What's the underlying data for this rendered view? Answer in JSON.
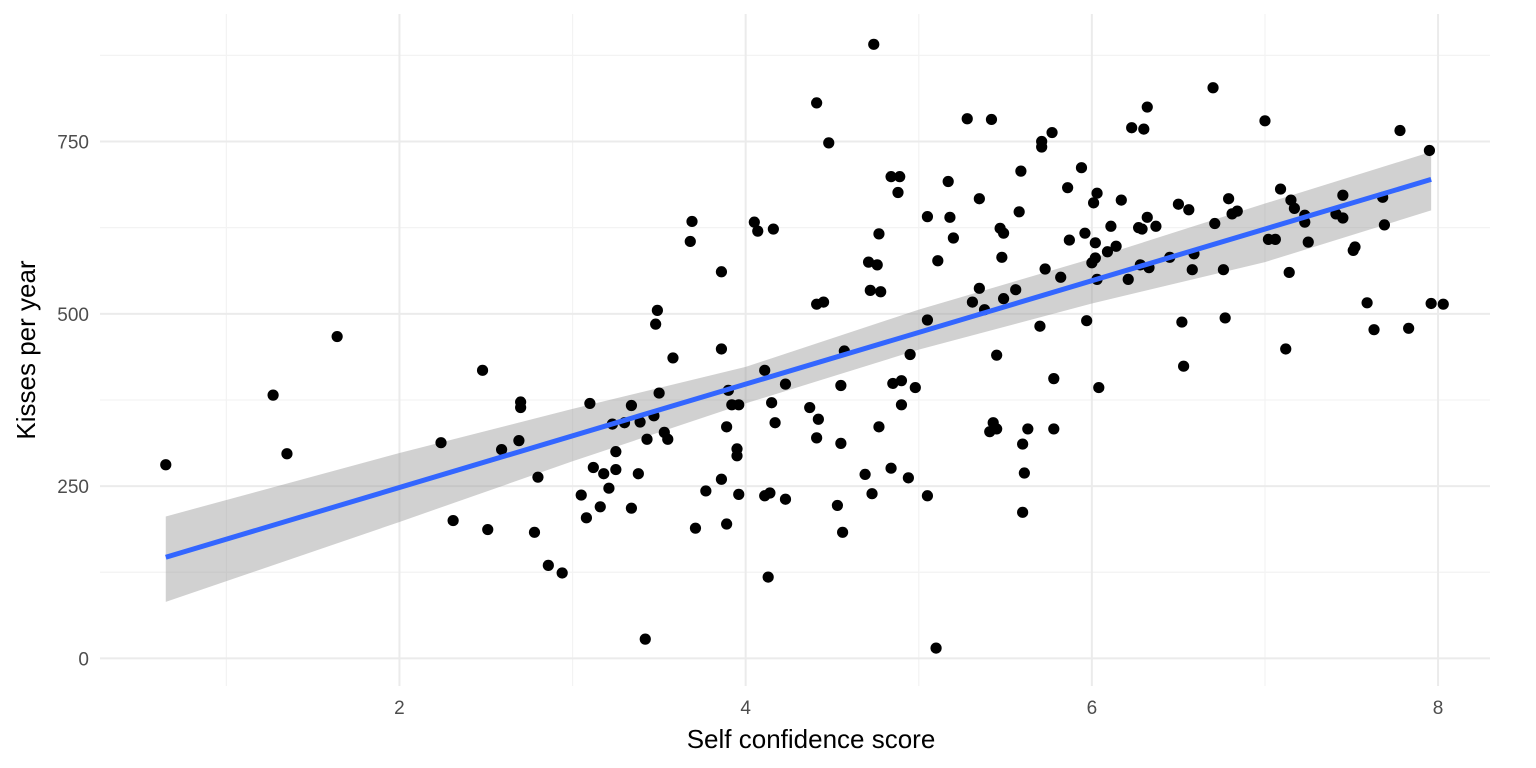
{
  "chart_data": {
    "type": "scatter",
    "xlabel": "Self confidence score",
    "ylabel": "Kisses per year",
    "xlim": [
      0.27,
      8.3
    ],
    "ylim": [
      -40,
      935
    ],
    "x_ticks": [
      2,
      4,
      6,
      8
    ],
    "x_tick_labels": [
      "2",
      "4",
      "6",
      "8"
    ],
    "y_ticks": [
      0,
      250,
      500,
      750
    ],
    "y_tick_labels": [
      "0",
      "250",
      "500",
      "750"
    ],
    "grid": true,
    "points": [
      [
        0.65,
        281
      ],
      [
        1.27,
        382
      ],
      [
        1.35,
        297
      ],
      [
        1.64,
        467
      ],
      [
        2.24,
        313
      ],
      [
        2.31,
        200
      ],
      [
        2.48,
        418
      ],
      [
        2.51,
        187
      ],
      [
        2.59,
        303
      ],
      [
        2.69,
        316
      ],
      [
        2.7,
        372
      ],
      [
        2.7,
        364
      ],
      [
        2.78,
        183
      ],
      [
        2.8,
        263
      ],
      [
        2.86,
        135
      ],
      [
        2.94,
        124
      ],
      [
        3.05,
        237
      ],
      [
        3.08,
        204
      ],
      [
        3.1,
        370
      ],
      [
        3.12,
        277
      ],
      [
        3.16,
        220
      ],
      [
        3.18,
        268
      ],
      [
        3.21,
        247
      ],
      [
        3.23,
        340
      ],
      [
        3.25,
        300
      ],
      [
        3.25,
        274
      ],
      [
        3.3,
        342
      ],
      [
        3.34,
        367
      ],
      [
        3.34,
        218
      ],
      [
        3.38,
        268
      ],
      [
        3.39,
        343
      ],
      [
        3.42,
        28
      ],
      [
        3.43,
        318
      ],
      [
        3.47,
        352
      ],
      [
        3.48,
        485
      ],
      [
        3.49,
        505
      ],
      [
        3.5,
        385
      ],
      [
        3.53,
        328
      ],
      [
        3.55,
        318
      ],
      [
        3.58,
        436
      ],
      [
        3.68,
        605
      ],
      [
        3.69,
        634
      ],
      [
        3.71,
        189
      ],
      [
        3.77,
        243
      ],
      [
        3.86,
        260
      ],
      [
        3.86,
        449
      ],
      [
        3.86,
        561
      ],
      [
        3.89,
        195
      ],
      [
        3.89,
        336
      ],
      [
        3.9,
        389
      ],
      [
        3.92,
        368
      ],
      [
        3.95,
        294
      ],
      [
        3.95,
        304
      ],
      [
        3.96,
        238
      ],
      [
        3.96,
        368
      ],
      [
        4.05,
        633
      ],
      [
        4.07,
        620
      ],
      [
        4.11,
        236
      ],
      [
        4.11,
        418
      ],
      [
        4.13,
        118
      ],
      [
        4.14,
        240
      ],
      [
        4.15,
        371
      ],
      [
        4.16,
        623
      ],
      [
        4.17,
        342
      ],
      [
        4.23,
        231
      ],
      [
        4.23,
        398
      ],
      [
        4.37,
        364
      ],
      [
        4.41,
        514
      ],
      [
        4.41,
        806
      ],
      [
        4.41,
        320
      ],
      [
        4.42,
        347
      ],
      [
        4.45,
        517
      ],
      [
        4.48,
        748
      ],
      [
        4.53,
        222
      ],
      [
        4.55,
        396
      ],
      [
        4.55,
        312
      ],
      [
        4.56,
        183
      ],
      [
        4.57,
        446
      ],
      [
        4.69,
        267
      ],
      [
        4.71,
        575
      ],
      [
        4.72,
        534
      ],
      [
        4.73,
        239
      ],
      [
        4.74,
        891
      ],
      [
        4.76,
        571
      ],
      [
        4.77,
        336
      ],
      [
        4.77,
        616
      ],
      [
        4.78,
        532
      ],
      [
        4.84,
        699
      ],
      [
        4.84,
        276
      ],
      [
        4.85,
        399
      ],
      [
        4.88,
        676
      ],
      [
        4.89,
        699
      ],
      [
        4.9,
        368
      ],
      [
        4.9,
        403
      ],
      [
        4.94,
        262
      ],
      [
        4.95,
        441
      ],
      [
        4.98,
        393
      ],
      [
        5.05,
        641
      ],
      [
        5.05,
        236
      ],
      [
        5.05,
        491
      ],
      [
        5.1,
        15
      ],
      [
        5.11,
        577
      ],
      [
        5.17,
        692
      ],
      [
        5.18,
        640
      ],
      [
        5.2,
        610
      ],
      [
        5.28,
        783
      ],
      [
        5.31,
        517
      ],
      [
        5.35,
        667
      ],
      [
        5.35,
        537
      ],
      [
        5.38,
        506
      ],
      [
        5.41,
        329
      ],
      [
        5.42,
        782
      ],
      [
        5.43,
        342
      ],
      [
        5.45,
        440
      ],
      [
        5.45,
        333
      ],
      [
        5.47,
        624
      ],
      [
        5.48,
        582
      ],
      [
        5.49,
        617
      ],
      [
        5.49,
        522
      ],
      [
        5.56,
        535
      ],
      [
        5.58,
        648
      ],
      [
        5.59,
        707
      ],
      [
        5.6,
        311
      ],
      [
        5.6,
        212
      ],
      [
        5.61,
        269
      ],
      [
        5.63,
        333
      ],
      [
        5.7,
        482
      ],
      [
        5.71,
        750
      ],
      [
        5.71,
        742
      ],
      [
        5.73,
        565
      ],
      [
        5.77,
        763
      ],
      [
        5.78,
        333
      ],
      [
        5.78,
        406
      ],
      [
        5.82,
        553
      ],
      [
        5.86,
        683
      ],
      [
        5.87,
        607
      ],
      [
        5.94,
        712
      ],
      [
        5.96,
        617
      ],
      [
        5.97,
        490
      ],
      [
        6.0,
        574
      ],
      [
        6.01,
        661
      ],
      [
        6.02,
        603
      ],
      [
        6.02,
        581
      ],
      [
        6.03,
        675
      ],
      [
        6.03,
        550
      ],
      [
        6.04,
        393
      ],
      [
        6.09,
        590
      ],
      [
        6.11,
        627
      ],
      [
        6.14,
        598
      ],
      [
        6.17,
        665
      ],
      [
        6.21,
        550
      ],
      [
        6.23,
        770
      ],
      [
        6.27,
        625
      ],
      [
        6.28,
        571
      ],
      [
        6.29,
        623
      ],
      [
        6.3,
        768
      ],
      [
        6.32,
        800
      ],
      [
        6.32,
        640
      ],
      [
        6.33,
        567
      ],
      [
        6.37,
        627
      ],
      [
        6.45,
        582
      ],
      [
        6.5,
        659
      ],
      [
        6.52,
        488
      ],
      [
        6.53,
        424
      ],
      [
        6.56,
        651
      ],
      [
        6.58,
        564
      ],
      [
        6.59,
        587
      ],
      [
        6.7,
        828
      ],
      [
        6.71,
        631
      ],
      [
        6.76,
        564
      ],
      [
        6.77,
        494
      ],
      [
        6.79,
        667
      ],
      [
        6.81,
        645
      ],
      [
        6.84,
        649
      ],
      [
        7.0,
        780
      ],
      [
        7.02,
        608
      ],
      [
        7.06,
        608
      ],
      [
        7.09,
        681
      ],
      [
        7.12,
        449
      ],
      [
        7.14,
        560
      ],
      [
        7.15,
        665
      ],
      [
        7.17,
        653
      ],
      [
        7.23,
        643
      ],
      [
        7.23,
        633
      ],
      [
        7.25,
        604
      ],
      [
        7.41,
        645
      ],
      [
        7.45,
        672
      ],
      [
        7.45,
        639
      ],
      [
        7.51,
        592
      ],
      [
        7.52,
        597
      ],
      [
        7.59,
        516
      ],
      [
        7.63,
        477
      ],
      [
        7.68,
        669
      ],
      [
        7.69,
        629
      ],
      [
        7.78,
        766
      ],
      [
        7.83,
        479
      ],
      [
        7.95,
        737
      ],
      [
        7.96,
        515
      ],
      [
        8.03,
        514
      ]
    ],
    "trend": {
      "method": "linear regression",
      "x_range": [
        0.65,
        7.96
      ],
      "intercept": 98,
      "slope": 75,
      "se_band": {
        "x": [
          0.65,
          2.0,
          3.0,
          4.0,
          5.0,
          6.0,
          7.0,
          7.96
        ],
        "lower": [
          82,
          198,
          286,
          370,
          448,
          515,
          575,
          650
        ],
        "upper": [
          206,
          298,
          362,
          423,
          506,
          580,
          660,
          735
        ]
      }
    },
    "colors": {
      "points": "#000000",
      "line": "#3366ff",
      "band": "#999999"
    }
  }
}
